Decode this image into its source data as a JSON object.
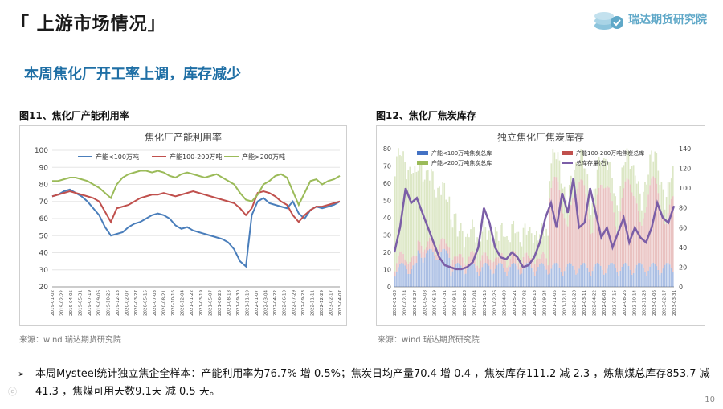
{
  "header": {
    "section_title": "「 上游市场情况」",
    "logo_text": "瑞达期货研究院",
    "headline": "本周焦化厂开工率上调，库存减少"
  },
  "chart_data": [
    {
      "type": "line",
      "caption": "图11、焦化厂产能利用率",
      "title": "焦化厂产能利用率",
      "ylim": [
        20,
        100
      ],
      "y_ticks": [
        20,
        30,
        40,
        50,
        60,
        70,
        80,
        90,
        100
      ],
      "x_tick_labels": [
        "2019-01-02",
        "2019-02-22",
        "2019-04-05",
        "2019-05-31",
        "2019-07-19",
        "2019-09-06",
        "2019-10-25",
        "2019-12-13",
        "2020-02-07",
        "2020-03-27",
        "2020-05-15",
        "2020-07-03",
        "2020-08-21",
        "2020-10-16",
        "2020-12-04",
        "2021-01-22",
        "2021-03-19",
        "2021-05-07",
        "2021-06-25",
        "2021-08-13",
        "2021-09-30",
        "2021-11-19",
        "2022-01-07",
        "2022-03-04",
        "2022-04-22",
        "2022-06-10",
        "2022-07-29",
        "2022-09-23",
        "2022-11-11",
        "2022-12-29",
        "2023-02-17",
        "2023-04-07"
      ],
      "series": [
        {
          "name": "产能<100万吨",
          "color": "#4a7ebb",
          "values": [
            73,
            74,
            76,
            77,
            75,
            73,
            70,
            66,
            62,
            55,
            50,
            51,
            52,
            55,
            57,
            58,
            60,
            62,
            63,
            62,
            60,
            56,
            54,
            55,
            53,
            52,
            51,
            50,
            49,
            48,
            46,
            42,
            35,
            32,
            62,
            70,
            72,
            69,
            68,
            67,
            66,
            70,
            63,
            60,
            65,
            67,
            66,
            67,
            68,
            70
          ]
        },
        {
          "name": "产能100-200万吨",
          "color": "#c0504d",
          "values": [
            73,
            74,
            75,
            76,
            75,
            74,
            73,
            72,
            70,
            64,
            58,
            66,
            67,
            68,
            70,
            72,
            73,
            74,
            74,
            75,
            74,
            73,
            74,
            75,
            76,
            75,
            74,
            73,
            72,
            71,
            70,
            69,
            66,
            62,
            66,
            75,
            76,
            75,
            73,
            70,
            68,
            62,
            58,
            62,
            65,
            67,
            67,
            68,
            69,
            70
          ]
        },
        {
          "name": "产能>200万吨",
          "color": "#9bbb59",
          "values": [
            82,
            82,
            83,
            84,
            84,
            83,
            82,
            80,
            78,
            75,
            72,
            80,
            84,
            86,
            87,
            88,
            88,
            87,
            88,
            87,
            85,
            84,
            86,
            87,
            86,
            85,
            84,
            85,
            86,
            84,
            82,
            80,
            75,
            71,
            70,
            74,
            80,
            82,
            85,
            86,
            84,
            76,
            68,
            75,
            82,
            83,
            80,
            82,
            83,
            85
          ]
        }
      ],
      "source": "来源：wind   瑞达期货研究院"
    },
    {
      "type": "bar+line",
      "caption": "图12、焦化厂焦炭库存",
      "title": "独立焦化厂焦炭库存",
      "y_left_ticks": [
        0,
        10,
        20,
        30,
        40,
        50,
        60,
        70,
        80
      ],
      "y_right_ticks": [
        0,
        20,
        40,
        60,
        80,
        100,
        120,
        140
      ],
      "x_tick_labels": [
        "2020-01-03",
        "2020-02-14",
        "2020-03-27",
        "2020-05-08",
        "2020-06-19",
        "2020-07-31",
        "2020-09-11",
        "2020-10-23",
        "2020-12-04",
        "2021-01-15",
        "2021-02-26",
        "2021-04-09",
        "2021-05-21",
        "2021-07-02",
        "2021-08-13",
        "2021-09-24",
        "2021-11-05",
        "2021-12-17",
        "2022-01-28",
        "2022-03-11",
        "2022-04-22",
        "2022-06-03",
        "2022-07-15",
        "2022-08-26",
        "2022-10-14",
        "2022-11-25",
        "2023-01-06",
        "2023-02-17",
        "2023-03-31"
      ],
      "legend": [
        "产能<100万吨焦炭总库",
        "产能100-200万吨焦炭总库",
        "产能>200万吨焦炭总库",
        "总库存量(右)"
      ],
      "colors": {
        "small": "#4472c4",
        "mid": "#c0504d",
        "large": "#9bbb59",
        "total": "#7b5ea7"
      },
      "total_series": [
        35,
        60,
        100,
        85,
        90,
        75,
        60,
        45,
        30,
        22,
        20,
        18,
        18,
        20,
        25,
        40,
        80,
        65,
        40,
        30,
        28,
        35,
        30,
        20,
        22,
        30,
        45,
        70,
        85,
        60,
        95,
        75,
        110,
        60,
        65,
        100,
        75,
        50,
        60,
        40,
        55,
        70,
        45,
        60,
        50,
        45,
        60,
        85,
        70,
        65,
        82
      ],
      "source": "来源：wind   瑞达期货研究院"
    }
  ],
  "summary": {
    "bullet": "➢",
    "text": "本周Mysteel统计独立焦企全样本：产能利用率为76.7% 增 0.5%；焦炭日均产量70.4 增 0.4 ，焦炭库存111.2 减 2.3 ，炼焦煤总库存853.7 减 41.3 ，焦煤可用天数9.1天 减 0.5 天。"
  },
  "page_number": "10",
  "watermark": "ⓒ"
}
